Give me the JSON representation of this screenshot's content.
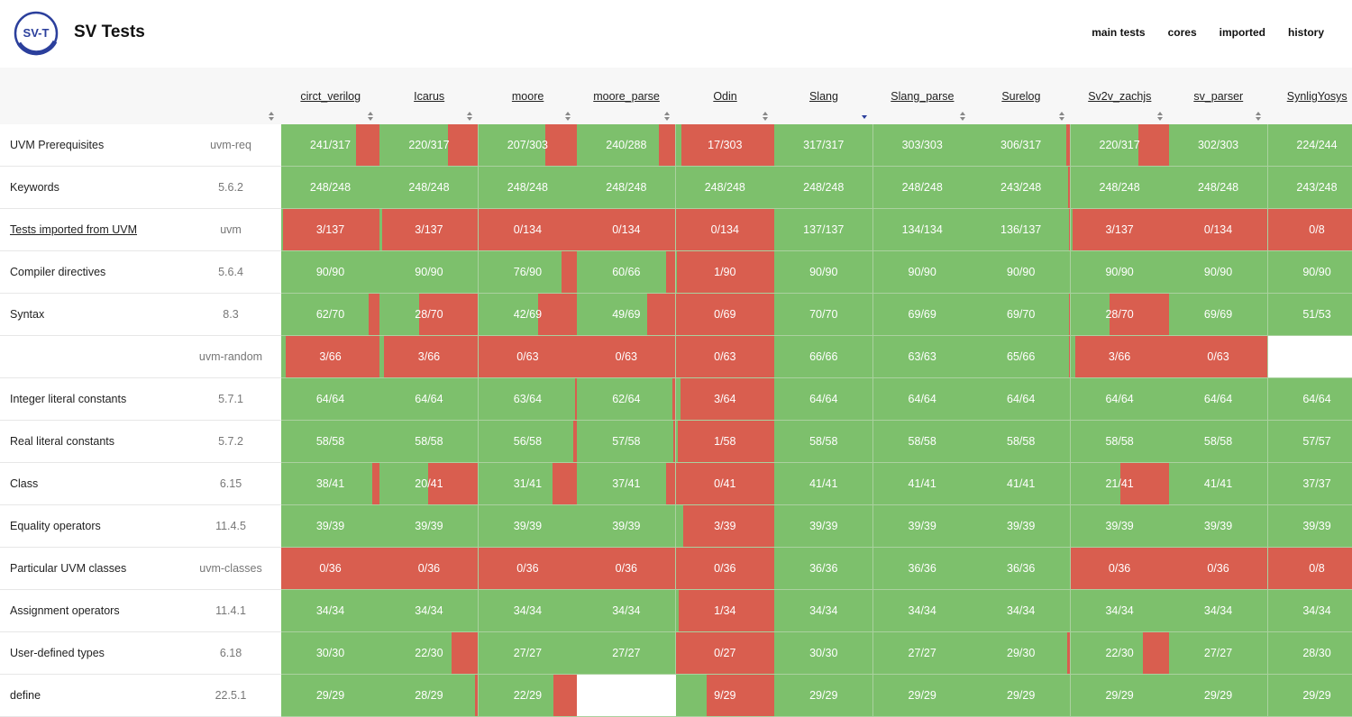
{
  "header": {
    "logo_text": "SV-T",
    "title": "SV Tests",
    "nav": [
      "main tests",
      "cores",
      "imported",
      "history"
    ]
  },
  "colors": {
    "pass": "#7dc06c",
    "fail": "#d95e4f",
    "accent": "#2b3f9c"
  },
  "tools": [
    "circt_verilog",
    "Icarus",
    "moore",
    "moore_parse",
    "Odin",
    "Slang",
    "Slang_parse",
    "Surelog",
    "Sv2v_zachjs",
    "sv_parser",
    "SynligYosys"
  ],
  "sorted_tool": "Slang",
  "rows": [
    {
      "name": "UVM Prerequisites",
      "tag": "uvm-req",
      "link": false,
      "cells": [
        "241/317",
        "220/317",
        "207/303",
        "240/288",
        "17/303",
        "317/317",
        "303/303",
        "306/317",
        "220/317",
        "302/303",
        "224/244"
      ]
    },
    {
      "name": "Keywords",
      "tag": "5.6.2",
      "link": false,
      "cells": [
        "248/248",
        "248/248",
        "248/248",
        "248/248",
        "248/248",
        "248/248",
        "248/248",
        "243/248",
        "248/248",
        "248/248",
        "243/248"
      ]
    },
    {
      "name": "Tests imported from UVM",
      "tag": "uvm",
      "link": true,
      "cells": [
        "3/137",
        "3/137",
        "0/134",
        "0/134",
        "0/134",
        "137/137",
        "134/134",
        "136/137",
        "3/137",
        "0/134",
        "0/8"
      ]
    },
    {
      "name": "Compiler directives",
      "tag": "5.6.4",
      "link": false,
      "cells": [
        "90/90",
        "90/90",
        "76/90",
        "60/66",
        "1/90",
        "90/90",
        "90/90",
        "90/90",
        "90/90",
        "90/90",
        "90/90"
      ]
    },
    {
      "name": "Syntax",
      "tag": "8.3",
      "link": false,
      "cells": [
        "62/70",
        "28/70",
        "42/69",
        "49/69",
        "0/69",
        "70/70",
        "69/69",
        "69/70",
        "28/70",
        "69/69",
        "51/53"
      ]
    },
    {
      "name": "",
      "tag": "uvm-random",
      "link": false,
      "cells": [
        "3/66",
        "3/66",
        "0/63",
        "0/63",
        "0/63",
        "66/66",
        "63/63",
        "65/66",
        "3/66",
        "0/63",
        ""
      ]
    },
    {
      "name": "Integer literal constants",
      "tag": "5.7.1",
      "link": false,
      "cells": [
        "64/64",
        "64/64",
        "63/64",
        "62/64",
        "3/64",
        "64/64",
        "64/64",
        "64/64",
        "64/64",
        "64/64",
        "64/64"
      ]
    },
    {
      "name": "Real literal constants",
      "tag": "5.7.2",
      "link": false,
      "cells": [
        "58/58",
        "58/58",
        "56/58",
        "57/58",
        "1/58",
        "58/58",
        "58/58",
        "58/58",
        "58/58",
        "58/58",
        "57/57"
      ]
    },
    {
      "name": "Class",
      "tag": "6.15",
      "link": false,
      "cells": [
        "38/41",
        "20/41",
        "31/41",
        "37/41",
        "0/41",
        "41/41",
        "41/41",
        "41/41",
        "21/41",
        "41/41",
        "37/37"
      ]
    },
    {
      "name": "Equality operators",
      "tag": "11.4.5",
      "link": false,
      "cells": [
        "39/39",
        "39/39",
        "39/39",
        "39/39",
        "3/39",
        "39/39",
        "39/39",
        "39/39",
        "39/39",
        "39/39",
        "39/39"
      ]
    },
    {
      "name": "Particular UVM classes",
      "tag": "uvm-classes",
      "link": false,
      "cells": [
        "0/36",
        "0/36",
        "0/36",
        "0/36",
        "0/36",
        "36/36",
        "36/36",
        "36/36",
        "0/36",
        "0/36",
        "0/8"
      ]
    },
    {
      "name": "Assignment operators",
      "tag": "11.4.1",
      "link": false,
      "cells": [
        "34/34",
        "34/34",
        "34/34",
        "34/34",
        "1/34",
        "34/34",
        "34/34",
        "34/34",
        "34/34",
        "34/34",
        "34/34"
      ]
    },
    {
      "name": "User-defined types",
      "tag": "6.18",
      "link": false,
      "cells": [
        "30/30",
        "22/30",
        "27/27",
        "27/27",
        "0/27",
        "30/30",
        "27/27",
        "29/30",
        "22/30",
        "27/27",
        "28/30"
      ]
    },
    {
      "name": "define",
      "tag": "22.5.1",
      "link": false,
      "cells": [
        "29/29",
        "28/29",
        "22/29",
        "",
        "9/29",
        "29/29",
        "29/29",
        "29/29",
        "29/29",
        "29/29",
        "29/29"
      ]
    }
  ]
}
